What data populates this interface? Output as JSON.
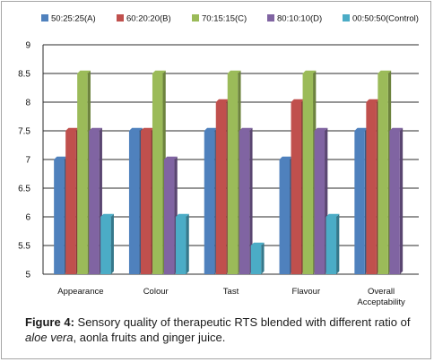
{
  "chart_data": {
    "type": "bar",
    "style": "3d-clustered-column",
    "categories": [
      "Appearance",
      "Colour",
      "Tast",
      "Flavour",
      "Overall Acceptability"
    ],
    "series": [
      {
        "name": "50:25:25(A)",
        "color": "#4f81bd",
        "values": [
          7,
          7.5,
          7.5,
          7,
          7.5
        ]
      },
      {
        "name": "60:20:20(B)",
        "color": "#c0504d",
        "values": [
          7.5,
          7.5,
          8,
          8,
          8
        ]
      },
      {
        "name": "70:15:15(C)",
        "color": "#9bbb59",
        "values": [
          8.5,
          8.5,
          8.5,
          8.5,
          8.5
        ]
      },
      {
        "name": "80:10:10(D)",
        "color": "#8064a2",
        "values": [
          7.5,
          7,
          7.5,
          7.5,
          7.5
        ]
      },
      {
        "name": "00:50:50(Control)",
        "color": "#4bacc6",
        "values": [
          6,
          6,
          5.5,
          6,
          null
        ]
      }
    ],
    "ylim": [
      5,
      9
    ],
    "yticks": [
      "5",
      "5.5",
      "6",
      "6.5",
      "7",
      "7.5",
      "8",
      "8.5",
      "9"
    ],
    "grid": true,
    "legend_position": "top"
  },
  "caption": {
    "label": "Figure 4:",
    "text_part1": " Sensory quality of therapeutic RTS blended with different ratio of ",
    "italic": "aloe vera",
    "text_part2": ", aonla fruits and ginger juice."
  }
}
